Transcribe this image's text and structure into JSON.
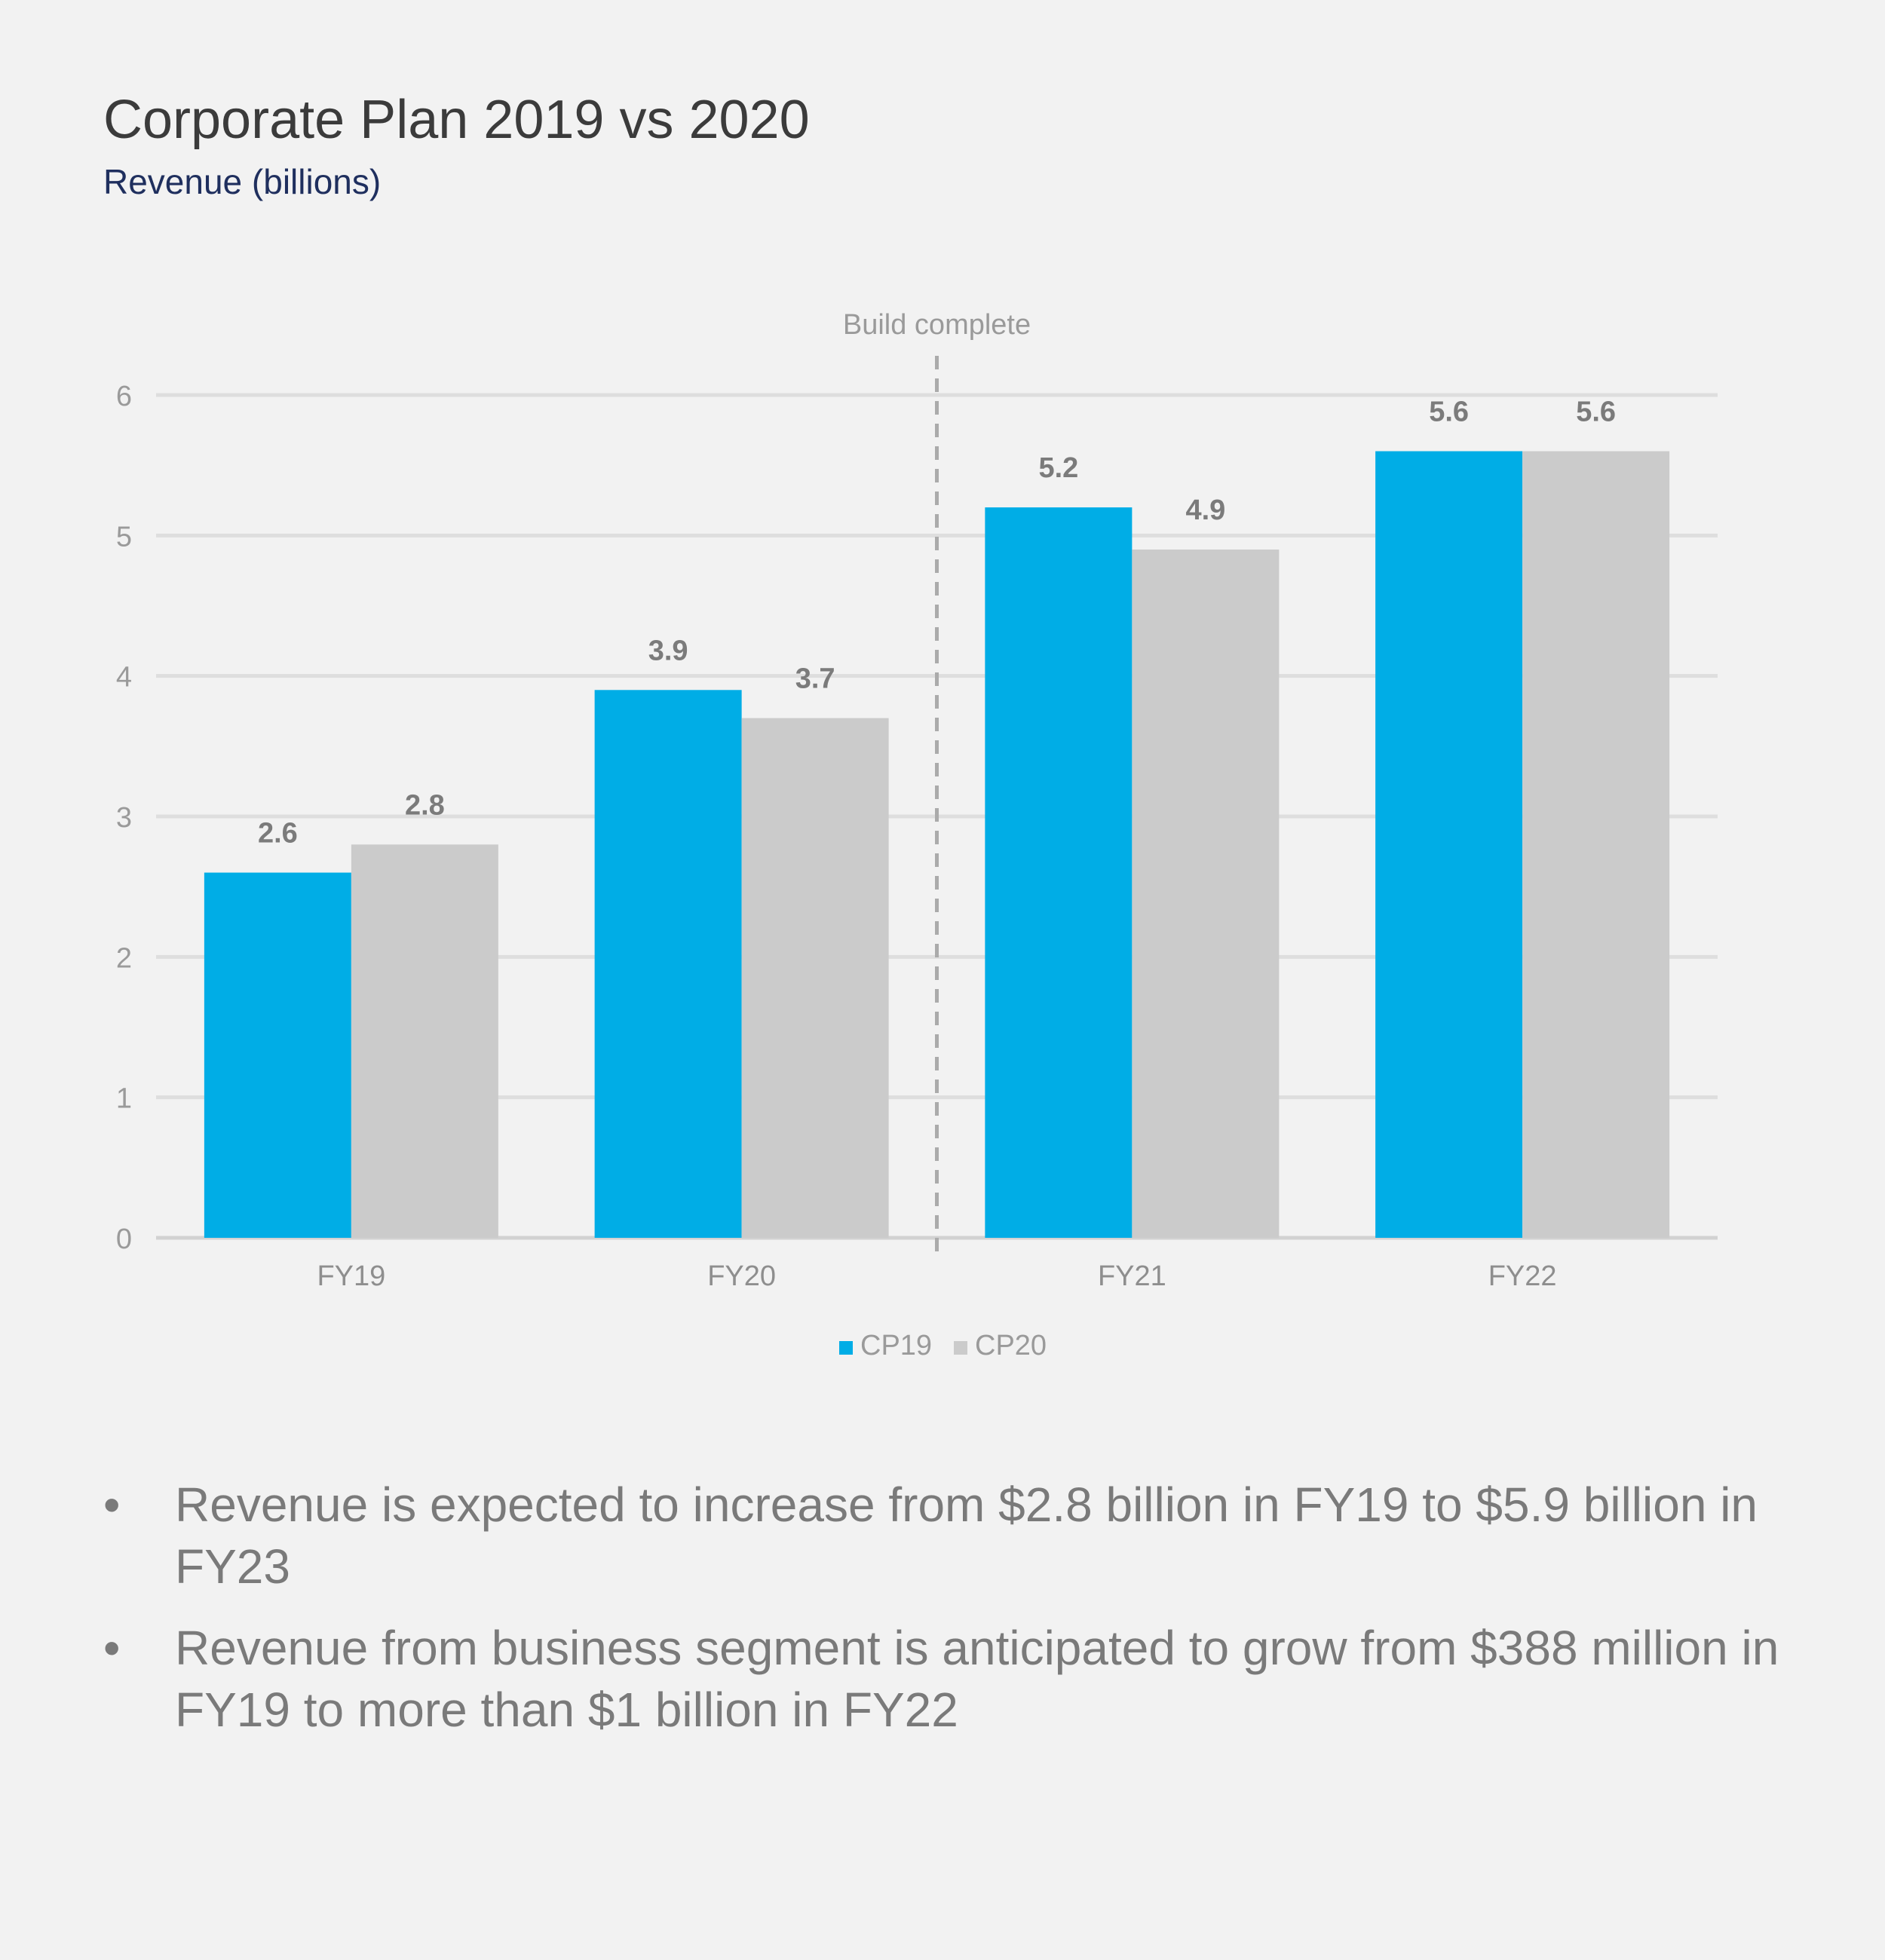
{
  "header": {
    "title": "Corporate Plan 2019 vs 2020",
    "subtitle": "Revenue (billions)"
  },
  "chart_data": {
    "type": "bar",
    "title": "Corporate Plan 2019 vs 2020",
    "subtitle": "Revenue (billions)",
    "xlabel": "",
    "ylabel": "",
    "categories": [
      "FY19",
      "FY20",
      "FY21",
      "FY22"
    ],
    "series": [
      {
        "name": "CP19",
        "values": [
          2.6,
          3.9,
          5.2,
          5.6
        ],
        "color": "#00ade6"
      },
      {
        "name": "CP20",
        "values": [
          2.8,
          3.7,
          4.9,
          5.6
        ],
        "color": "#cbcbcb"
      }
    ],
    "ylim": [
      0,
      6
    ],
    "yticks": [
      0,
      1,
      2,
      3,
      4,
      5,
      6
    ],
    "grid": true,
    "legend": "bottom-center",
    "annotation": {
      "label": "Build complete",
      "between": [
        "FY20",
        "FY21"
      ]
    }
  },
  "bullets": [
    "Revenue is expected to increase from $2.8 billion in FY19 to $5.9 billion in FY23",
    "Revenue from business segment is anticipated to grow from $388 million in FY19 to more than $1 billion in FY22"
  ],
  "bullet_symbol": "•"
}
